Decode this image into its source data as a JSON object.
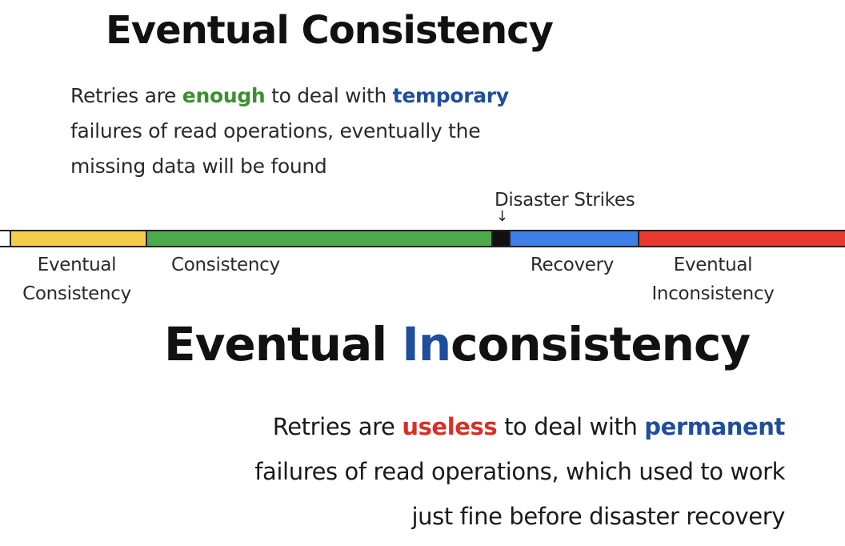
{
  "title_top": "Eventual Consistency",
  "title_bottom": {
    "part1": "Eventual ",
    "part2_highlight": "In",
    "part3": "consistency"
  },
  "para_top": {
    "line1": {
      "a": "Retries are ",
      "em1": "enough",
      "b": " to deal with ",
      "em2": "temporary"
    },
    "line2": "failures of read operations, eventually the",
    "line3": "missing data will be found"
  },
  "para_bottom": {
    "line1": {
      "a": "Retries are ",
      "em1": "useless",
      "b": " to deal with ",
      "em2": "permanent"
    },
    "line2": "failures of read operations, which used to work",
    "line3": "just fine before disaster recovery"
  },
  "timeline": {
    "annotation": "Disaster Strikes",
    "arrow": "↓",
    "segments": [
      {
        "name": "start",
        "color": "#ffffff"
      },
      {
        "name": "eventual-consistency",
        "color": "#f6cd4a"
      },
      {
        "name": "consistency",
        "color": "#4caa4c"
      },
      {
        "name": "disaster",
        "color": "#111111"
      },
      {
        "name": "recovery",
        "color": "#3f7fe8"
      },
      {
        "name": "eventual-inconsistency",
        "color": "#e8392f"
      }
    ],
    "labels": {
      "eventual_consistency": [
        "Eventual",
        "Consistency"
      ],
      "consistency": "Consistency",
      "recovery": "Recovery",
      "eventual_inconsistency": [
        "Eventual",
        "Inconsistency"
      ]
    }
  },
  "colors": {
    "green_emphasis": "#3c8f30",
    "blue_emphasis": "#1f4e9c",
    "red_emphasis": "#d93025"
  }
}
